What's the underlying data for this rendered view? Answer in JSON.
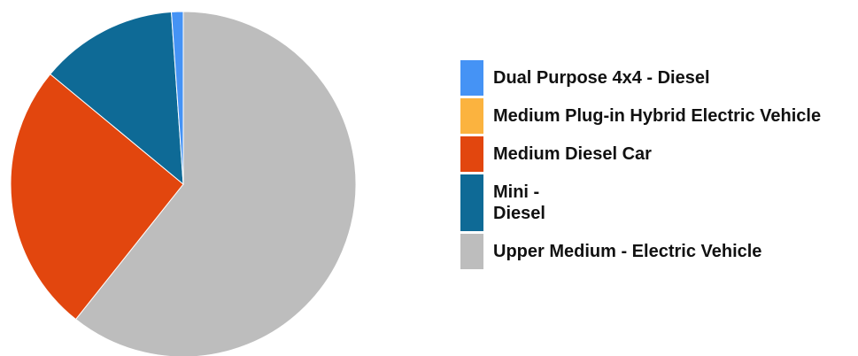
{
  "chart_data": {
    "type": "pie",
    "categories": [
      "Dual Purpose 4x4 - Diesel",
      "Medium Plug-in Hybrid Electric Vehicle",
      "Medium Diesel Car",
      "Mini - Diesel",
      "Upper Medium - Electric Vehicle"
    ],
    "values": [
      1.1,
      0,
      25.3,
      12.9,
      60.7
    ],
    "colors": [
      "#4593f5",
      "#fbb33f",
      "#e2460e",
      "#0e6a96",
      "#bdbdbd"
    ],
    "legend": "right"
  }
}
